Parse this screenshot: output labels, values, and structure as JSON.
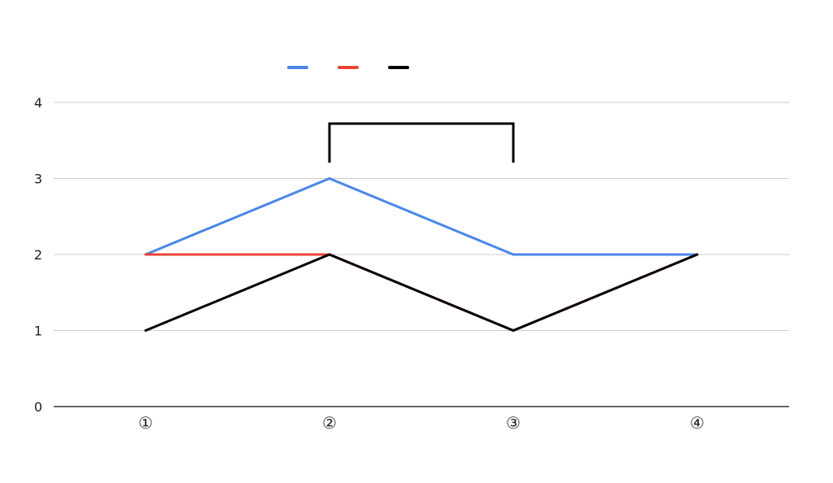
{
  "chart_data": {
    "type": "line",
    "title": "",
    "xlabel": "",
    "ylabel": "",
    "categories": [
      "1",
      "2",
      "3",
      "4"
    ],
    "ylim": [
      0,
      4
    ],
    "yticks": [
      0,
      1,
      2,
      3,
      4
    ],
    "grid": true,
    "legend_position": "top-center",
    "annotation": {
      "text": "",
      "from_category": 1,
      "to_category": 2
    },
    "series": [
      {
        "name": "",
        "color": "#4a86e8",
        "values": [
          2,
          3,
          2,
          2
        ]
      },
      {
        "name": "",
        "color": "#ea4335",
        "values": [
          2,
          2,
          1,
          2
        ]
      },
      {
        "name": "",
        "color": "#000000",
        "values": [
          1,
          2,
          1,
          2
        ]
      }
    ]
  }
}
